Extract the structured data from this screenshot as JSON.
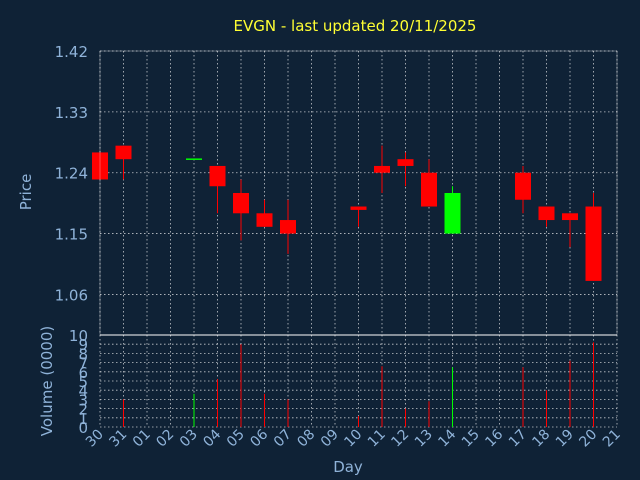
{
  "title": "EVGN - last updated 20/11/2025",
  "colors": {
    "background": "#0f2236",
    "axis_text": "#8fb3d9",
    "title": "#ffff33",
    "grid": "#ffffff",
    "down": "#ff0000",
    "up": "#00ff00"
  },
  "chart_data": [
    {
      "type": "candlestick",
      "ylabel": "Price",
      "ylim": [
        1.0,
        1.42
      ],
      "yticks": [
        "1.42",
        "1.33",
        "1.24",
        "1.15",
        "1.06"
      ],
      "grid": true,
      "candles": [
        {
          "day": "30",
          "open": 1.27,
          "high": 1.27,
          "low": 1.23,
          "close": 1.23,
          "dir": "down"
        },
        {
          "day": "31",
          "open": 1.28,
          "high": 1.28,
          "low": 1.23,
          "close": 1.26,
          "dir": "down"
        },
        {
          "day": "03",
          "open": 1.26,
          "high": 1.26,
          "low": 1.26,
          "close": 1.26,
          "dir": "up"
        },
        {
          "day": "04",
          "open": 1.25,
          "high": 1.25,
          "low": 1.18,
          "close": 1.22,
          "dir": "down"
        },
        {
          "day": "05",
          "open": 1.21,
          "high": 1.23,
          "low": 1.14,
          "close": 1.18,
          "dir": "down"
        },
        {
          "day": "06",
          "open": 1.18,
          "high": 1.2,
          "low": 1.16,
          "close": 1.16,
          "dir": "down"
        },
        {
          "day": "07",
          "open": 1.17,
          "high": 1.2,
          "low": 1.12,
          "close": 1.15,
          "dir": "down"
        },
        {
          "day": "10",
          "open": 1.19,
          "high": 1.19,
          "low": 1.16,
          "close": 1.185,
          "dir": "down"
        },
        {
          "day": "11",
          "open": 1.25,
          "high": 1.28,
          "low": 1.21,
          "close": 1.24,
          "dir": "down"
        },
        {
          "day": "12",
          "open": 1.26,
          "high": 1.27,
          "low": 1.22,
          "close": 1.25,
          "dir": "down"
        },
        {
          "day": "13",
          "open": 1.24,
          "high": 1.26,
          "low": 1.19,
          "close": 1.19,
          "dir": "down"
        },
        {
          "day": "14",
          "open": 1.15,
          "high": 1.22,
          "low": 1.15,
          "close": 1.21,
          "dir": "up"
        },
        {
          "day": "17",
          "open": 1.24,
          "high": 1.25,
          "low": 1.18,
          "close": 1.2,
          "dir": "down"
        },
        {
          "day": "18",
          "open": 1.19,
          "high": 1.19,
          "low": 1.16,
          "close": 1.17,
          "dir": "down"
        },
        {
          "day": "19",
          "open": 1.18,
          "high": 1.18,
          "low": 1.13,
          "close": 1.17,
          "dir": "down"
        },
        {
          "day": "20",
          "open": 1.19,
          "high": 1.21,
          "low": 1.08,
          "close": 1.08,
          "dir": "down"
        }
      ]
    },
    {
      "type": "bar",
      "ylabel": "Volume (0000)",
      "xlabel": "Day",
      "ylim": [
        0,
        10
      ],
      "yticks": [
        "10",
        "9",
        "8",
        "7",
        "6",
        "5",
        "4",
        "3",
        "2",
        "1",
        "0"
      ],
      "categories": [
        "30",
        "31",
        "01",
        "02",
        "03",
        "04",
        "05",
        "06",
        "07",
        "08",
        "09",
        "10",
        "11",
        "12",
        "13",
        "14",
        "15",
        "16",
        "17",
        "18",
        "19",
        "20",
        "21"
      ],
      "bars": [
        {
          "day": "31",
          "value": 3.0,
          "dir": "down"
        },
        {
          "day": "03",
          "value": 3.6,
          "dir": "up"
        },
        {
          "day": "04",
          "value": 5.2,
          "dir": "down"
        },
        {
          "day": "05",
          "value": 9.0,
          "dir": "down"
        },
        {
          "day": "06",
          "value": 3.6,
          "dir": "down"
        },
        {
          "day": "07",
          "value": 3.0,
          "dir": "down"
        },
        {
          "day": "10",
          "value": 1.2,
          "dir": "down"
        },
        {
          "day": "11",
          "value": 6.6,
          "dir": "down"
        },
        {
          "day": "12",
          "value": 2.0,
          "dir": "down"
        },
        {
          "day": "13",
          "value": 2.8,
          "dir": "down"
        },
        {
          "day": "14",
          "value": 6.5,
          "dir": "up"
        },
        {
          "day": "17",
          "value": 6.5,
          "dir": "down"
        },
        {
          "day": "18",
          "value": 4.0,
          "dir": "down"
        },
        {
          "day": "19",
          "value": 7.2,
          "dir": "down"
        },
        {
          "day": "20",
          "value": 9.2,
          "dir": "down"
        }
      ]
    }
  ]
}
